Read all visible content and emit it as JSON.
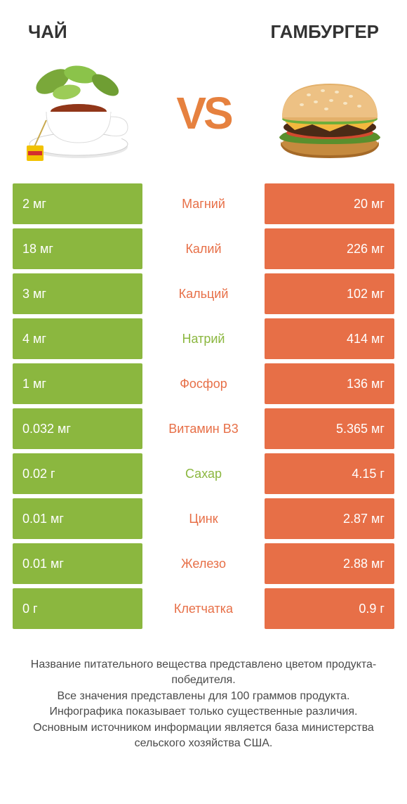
{
  "colors": {
    "left": "#8bb73f",
    "right": "#e76f47",
    "mid_bg": "#ffffff",
    "title": "#333333",
    "vs": "#e6813f",
    "footer_text": "#4a4a4a"
  },
  "left_product": "ЧАЙ",
  "right_product": "ГАМБУРГЕР",
  "vs_label": "VS",
  "rows": [
    {
      "nutrient": "Магний",
      "left": "2 мг",
      "right": "20 мг",
      "winner": "right"
    },
    {
      "nutrient": "Калий",
      "left": "18 мг",
      "right": "226 мг",
      "winner": "right"
    },
    {
      "nutrient": "Кальций",
      "left": "3 мг",
      "right": "102 мг",
      "winner": "right"
    },
    {
      "nutrient": "Натрий",
      "left": "4 мг",
      "right": "414 мг",
      "winner": "left"
    },
    {
      "nutrient": "Фосфор",
      "left": "1 мг",
      "right": "136 мг",
      "winner": "right"
    },
    {
      "nutrient": "Витамин B3",
      "left": "0.032 мг",
      "right": "5.365 мг",
      "winner": "right"
    },
    {
      "nutrient": "Сахар",
      "left": "0.02 г",
      "right": "4.15 г",
      "winner": "left"
    },
    {
      "nutrient": "Цинк",
      "left": "0.01 мг",
      "right": "2.87 мг",
      "winner": "right"
    },
    {
      "nutrient": "Железо",
      "left": "0.01 мг",
      "right": "2.88 мг",
      "winner": "right"
    },
    {
      "nutrient": "Клетчатка",
      "left": "0 г",
      "right": "0.9 г",
      "winner": "right"
    }
  ],
  "footer_lines": [
    "Название питательного вещества представлено цветом продукта-победителя.",
    "Все значения представлены для 100 граммов продукта.",
    "Инфографика показывает только существенные различия.",
    "Основным источником информации является база министерства сельского хозяйства США."
  ]
}
